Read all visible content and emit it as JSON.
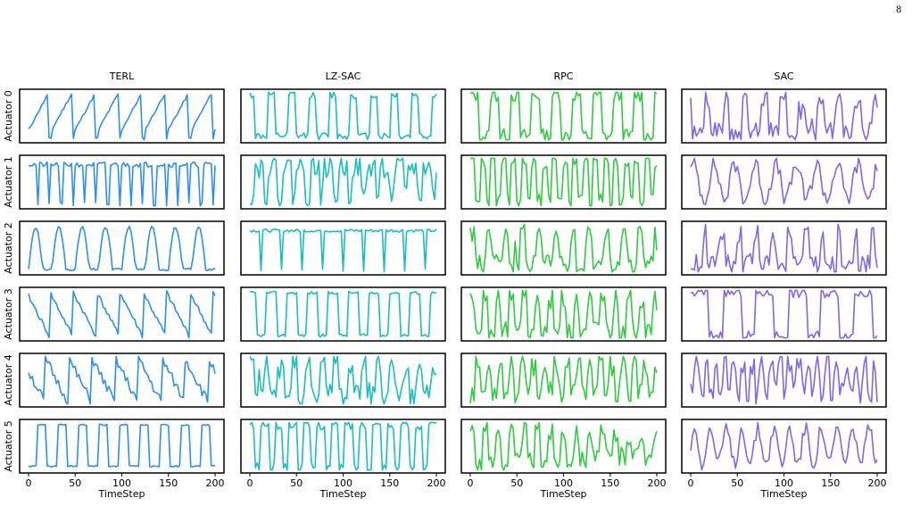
{
  "page_number": "8",
  "chart_data": {
    "type": "line",
    "layout": "grid",
    "rows": [
      "Actuator 0",
      "Actuator 1",
      "Actuator 2",
      "Actuator 3",
      "Actuator 4",
      "Actuator 5"
    ],
    "columns": [
      {
        "title": "TERL",
        "color": "#2b8ff2"
      },
      {
        "title": "LZ-SAC",
        "color": "#17bfbf"
      },
      {
        "title": "RPC",
        "color": "#2ecc40"
      },
      {
        "title": "SAC",
        "color": "#7b68ee"
      }
    ],
    "xlabel": "TimeStep",
    "xlim": [
      0,
      200
    ],
    "xticks": [
      0,
      50,
      100,
      150,
      200
    ],
    "ylim": [
      -1,
      1
    ],
    "y_ticks_shown": false,
    "grid": false,
    "panels": [
      {
        "row": 0,
        "col": 0,
        "pattern": "sawtooth",
        "period": 25,
        "phase": 0.15,
        "noise": 0.05,
        "width": 0.6,
        "seed": 11
      },
      {
        "row": 0,
        "col": 1,
        "pattern": "pulse",
        "period": 22,
        "phase": 0.1,
        "noise": 0.15,
        "width": 0.35,
        "seed": 12
      },
      {
        "row": 0,
        "col": 2,
        "pattern": "pulse",
        "period": 22,
        "phase": 0.0,
        "noise": 0.3,
        "width": 0.45,
        "seed": 13
      },
      {
        "row": 0,
        "col": 3,
        "pattern": "spiky",
        "period": 20,
        "phase": 0.2,
        "noise": 0.35,
        "width": 0.3,
        "seed": 14
      },
      {
        "row": 1,
        "col": 0,
        "pattern": "dips",
        "period": 12.5,
        "phase": 0.3,
        "noise": 0.1,
        "width": 0.2,
        "seed": 21
      },
      {
        "row": 1,
        "col": 1,
        "pattern": "noisyhigh",
        "period": 15,
        "phase": 0.0,
        "noise": 0.45,
        "width": 0.3,
        "seed": 22
      },
      {
        "row": 1,
        "col": 2,
        "pattern": "pulse",
        "period": 11,
        "phase": 0.0,
        "noise": 0.35,
        "width": 0.5,
        "seed": 23
      },
      {
        "row": 1,
        "col": 3,
        "pattern": "wave",
        "period": 22,
        "phase": 0.1,
        "noise": 0.35,
        "width": 0.5,
        "seed": 24
      },
      {
        "row": 2,
        "col": 0,
        "pattern": "hump",
        "period": 25,
        "phase": 0.0,
        "noise": 0.05,
        "width": 0.6,
        "seed": 31
      },
      {
        "row": 2,
        "col": 1,
        "pattern": "dips",
        "period": 22,
        "phase": 0.5,
        "noise": 0.06,
        "width": 0.12,
        "seed": 32
      },
      {
        "row": 2,
        "col": 2,
        "pattern": "spiky",
        "period": 18,
        "phase": 0.0,
        "noise": 0.35,
        "width": 0.25,
        "seed": 33
      },
      {
        "row": 2,
        "col": 3,
        "pattern": "spiky",
        "period": 18,
        "phase": 0.3,
        "noise": 0.4,
        "width": 0.3,
        "seed": 34
      },
      {
        "row": 3,
        "col": 0,
        "pattern": "sawdown",
        "period": 25,
        "phase": 0.1,
        "noise": 0.1,
        "width": 0.5,
        "seed": 41
      },
      {
        "row": 3,
        "col": 1,
        "pattern": "square",
        "period": 22,
        "phase": 0.2,
        "noise": 0.06,
        "width": 0.5,
        "seed": 42
      },
      {
        "row": 3,
        "col": 2,
        "pattern": "spiky",
        "period": 14,
        "phase": 0.0,
        "noise": 0.45,
        "width": 0.4,
        "seed": 43
      },
      {
        "row": 3,
        "col": 3,
        "pattern": "square",
        "period": 35,
        "phase": 0.0,
        "noise": 0.2,
        "width": 0.55,
        "seed": 44
      },
      {
        "row": 4,
        "col": 0,
        "pattern": "sawdown",
        "period": 25,
        "phase": 0.3,
        "noise": 0.2,
        "width": 0.5,
        "seed": 51
      },
      {
        "row": 4,
        "col": 1,
        "pattern": "spiky",
        "period": 15,
        "phase": 0.0,
        "noise": 0.5,
        "width": 0.4,
        "seed": 52
      },
      {
        "row": 4,
        "col": 2,
        "pattern": "noisyhigh",
        "period": 12,
        "phase": 0.0,
        "noise": 0.45,
        "width": 0.35,
        "seed": 53
      },
      {
        "row": 4,
        "col": 3,
        "pattern": "noisyhigh",
        "period": 10,
        "phase": 0.0,
        "noise": 0.5,
        "width": 0.4,
        "seed": 54
      },
      {
        "row": 5,
        "col": 0,
        "pattern": "pulse",
        "period": 22,
        "phase": 0.6,
        "noise": 0.03,
        "width": 0.45,
        "seed": 61
      },
      {
        "row": 5,
        "col": 1,
        "pattern": "square",
        "period": 15,
        "phase": 0.2,
        "noise": 0.2,
        "width": 0.55,
        "seed": 62
      },
      {
        "row": 5,
        "col": 2,
        "pattern": "decay",
        "period": 14,
        "phase": 0.0,
        "noise": 0.4,
        "width": 0.4,
        "seed": 63
      },
      {
        "row": 5,
        "col": 3,
        "pattern": "wave",
        "period": 17,
        "phase": 0.0,
        "noise": 0.3,
        "width": 0.5,
        "seed": 64
      }
    ]
  }
}
